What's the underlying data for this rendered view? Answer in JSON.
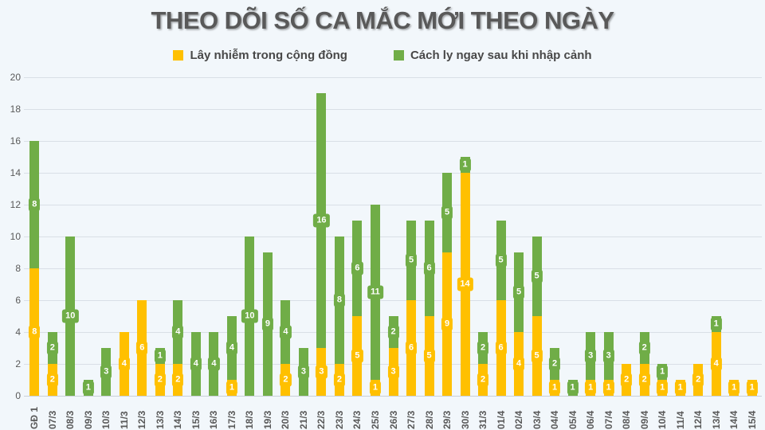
{
  "title": "THEO DÕI SỐ CA MẮC MỚI THEO NGÀY",
  "colors": {
    "community": "#FFC000",
    "quarantine": "#70AD47",
    "background": "#f2f7fb",
    "text": "#595959"
  },
  "chart_data": {
    "type": "bar",
    "stacked": true,
    "title": "THEO DÕI SỐ CA MẮC MỚI THEO NGÀY",
    "xlabel": "",
    "ylabel": "",
    "ylim": [
      0,
      20
    ],
    "yticks": [
      0,
      2,
      4,
      6,
      8,
      10,
      12,
      14,
      16,
      18,
      20
    ],
    "grid": true,
    "legend_position": "top",
    "categories": [
      "GĐ 1",
      "07/3",
      "08/3",
      "09/3",
      "10/3",
      "11/3",
      "12/3",
      "13/3",
      "14/3",
      "15/3",
      "16/3",
      "17/3",
      "18/3",
      "19/3",
      "20/3",
      "21/3",
      "22/3",
      "23/3",
      "24/3",
      "25/3",
      "26/3",
      "27/3",
      "28/3",
      "29/3",
      "30/3",
      "31/3",
      "01/4",
      "02/4",
      "03/4",
      "04/4",
      "05/4",
      "06/4",
      "07/4",
      "08/4",
      "09/4",
      "10/4",
      "11/4",
      "12/4",
      "13/4",
      "14/4",
      "15/4"
    ],
    "series": [
      {
        "name": "Lây nhiễm trong cộng đồng",
        "color": "#FFC000",
        "values": [
          8,
          2,
          0,
          0,
          0,
          4,
          6,
          2,
          2,
          0,
          0,
          1,
          0,
          0,
          2,
          0,
          3,
          2,
          5,
          1,
          3,
          6,
          5,
          9,
          14,
          2,
          6,
          4,
          5,
          1,
          0,
          1,
          1,
          2,
          2,
          1,
          1,
          2,
          4,
          1,
          1
        ]
      },
      {
        "name": "Cách ly ngay sau khi nhập cảnh",
        "color": "#70AD47",
        "values": [
          8,
          2,
          10,
          1,
          3,
          0,
          0,
          1,
          4,
          4,
          4,
          4,
          10,
          9,
          4,
          3,
          16,
          8,
          6,
          11,
          2,
          5,
          6,
          5,
          1,
          2,
          5,
          5,
          5,
          2,
          1,
          3,
          3,
          0,
          2,
          1,
          0,
          0,
          1,
          0,
          0
        ]
      }
    ]
  }
}
